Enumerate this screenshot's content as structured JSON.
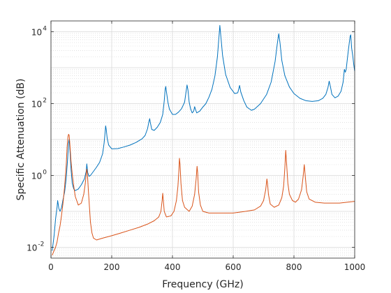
{
  "chart_data": {
    "type": "line",
    "title": "",
    "xlabel": "Frequency (GHz)",
    "ylabel": "Specific Attenuation (dB)",
    "xlim": [
      0,
      1000
    ],
    "ylim": [
      0.005,
      20000
    ],
    "yscale": "log",
    "grid": true,
    "minor_grid": true,
    "legend": "none",
    "xticks": [
      0,
      200,
      400,
      600,
      800,
      1000
    ],
    "xtick_labels": [
      "0",
      "200",
      "400",
      "600",
      "800",
      "1000"
    ],
    "yticks": [
      0.01,
      1,
      100,
      10000
    ],
    "ytick_labels": [
      "10",
      "10",
      "10",
      "10"
    ],
    "ytick_exponents": [
      "-2",
      "0",
      "2",
      "4"
    ],
    "series": [
      {
        "color": "#0072BD",
        "points": [
          [
            4,
            0.008
          ],
          [
            10,
            0.02
          ],
          [
            15,
            0.06
          ],
          [
            20,
            0.13
          ],
          [
            22,
            0.2
          ],
          [
            26,
            0.12
          ],
          [
            30,
            0.1
          ],
          [
            35,
            0.13
          ],
          [
            40,
            0.22
          ],
          [
            45,
            0.35
          ],
          [
            50,
            0.8
          ],
          [
            55,
            3
          ],
          [
            58,
            8
          ],
          [
            60,
            10
          ],
          [
            62,
            6
          ],
          [
            66,
            1.5
          ],
          [
            70,
            0.6
          ],
          [
            75,
            0.42
          ],
          [
            80,
            0.38
          ],
          [
            90,
            0.42
          ],
          [
            100,
            0.55
          ],
          [
            110,
            0.8
          ],
          [
            116,
            1.3
          ],
          [
            118,
            2.1
          ],
          [
            121,
            1.2
          ],
          [
            125,
            0.95
          ],
          [
            130,
            1.0
          ],
          [
            140,
            1.3
          ],
          [
            150,
            1.7
          ],
          [
            160,
            2.3
          ],
          [
            170,
            4
          ],
          [
            175,
            8
          ],
          [
            178,
            15
          ],
          [
            180,
            24
          ],
          [
            182,
            19
          ],
          [
            185,
            11
          ],
          [
            190,
            7
          ],
          [
            200,
            5.5
          ],
          [
            220,
            5.6
          ],
          [
            240,
            6.2
          ],
          [
            260,
            7
          ],
          [
            280,
            8.3
          ],
          [
            300,
            10.5
          ],
          [
            310,
            13
          ],
          [
            318,
            20
          ],
          [
            322,
            30
          ],
          [
            325,
            38
          ],
          [
            327,
            30
          ],
          [
            332,
            19
          ],
          [
            340,
            18
          ],
          [
            350,
            22
          ],
          [
            360,
            30
          ],
          [
            368,
            50
          ],
          [
            373,
            120
          ],
          [
            376,
            250
          ],
          [
            378,
            300
          ],
          [
            380,
            220
          ],
          [
            385,
            110
          ],
          [
            390,
            70
          ],
          [
            400,
            50
          ],
          [
            410,
            50
          ],
          [
            420,
            58
          ],
          [
            430,
            72
          ],
          [
            440,
            110
          ],
          [
            445,
            220
          ],
          [
            448,
            330
          ],
          [
            451,
            240
          ],
          [
            455,
            110
          ],
          [
            460,
            70
          ],
          [
            465,
            55
          ],
          [
            470,
            62
          ],
          [
            473,
            82
          ],
          [
            476,
            68
          ],
          [
            480,
            55
          ],
          [
            490,
            62
          ],
          [
            500,
            80
          ],
          [
            510,
            100
          ],
          [
            520,
            150
          ],
          [
            530,
            250
          ],
          [
            540,
            600
          ],
          [
            548,
            2000
          ],
          [
            553,
            7000
          ],
          [
            556,
            15000
          ],
          [
            559,
            8000
          ],
          [
            565,
            2200
          ],
          [
            575,
            650
          ],
          [
            590,
            280
          ],
          [
            605,
            190
          ],
          [
            615,
            200
          ],
          [
            618,
            250
          ],
          [
            621,
            320
          ],
          [
            625,
            210
          ],
          [
            635,
            120
          ],
          [
            645,
            80
          ],
          [
            660,
            65
          ],
          [
            670,
            70
          ],
          [
            690,
            100
          ],
          [
            710,
            180
          ],
          [
            725,
            400
          ],
          [
            738,
            1500
          ],
          [
            745,
            4500
          ],
          [
            750,
            8800
          ],
          [
            754,
            5000
          ],
          [
            760,
            1600
          ],
          [
            770,
            600
          ],
          [
            785,
            290
          ],
          [
            800,
            190
          ],
          [
            820,
            140
          ],
          [
            840,
            120
          ],
          [
            860,
            115
          ],
          [
            880,
            120
          ],
          [
            895,
            140
          ],
          [
            905,
            180
          ],
          [
            912,
            280
          ],
          [
            916,
            420
          ],
          [
            920,
            300
          ],
          [
            925,
            180
          ],
          [
            935,
            145
          ],
          [
            945,
            160
          ],
          [
            955,
            220
          ],
          [
            962,
            400
          ],
          [
            966,
            900
          ],
          [
            969,
            750
          ],
          [
            972,
            900
          ],
          [
            976,
            1800
          ],
          [
            980,
            3500
          ],
          [
            985,
            7500
          ],
          [
            987,
            8200
          ],
          [
            990,
            3500
          ],
          [
            994,
            2000
          ],
          [
            997,
            1200
          ],
          [
            1000,
            800
          ]
        ]
      },
      {
        "color": "#D95319",
        "points": [
          [
            4,
            0.006
          ],
          [
            10,
            0.008
          ],
          [
            15,
            0.01
          ],
          [
            20,
            0.014
          ],
          [
            25,
            0.025
          ],
          [
            30,
            0.04
          ],
          [
            35,
            0.08
          ],
          [
            40,
            0.18
          ],
          [
            45,
            0.5
          ],
          [
            50,
            1.8
          ],
          [
            53,
            6
          ],
          [
            56,
            12
          ],
          [
            58,
            14
          ],
          [
            60,
            13
          ],
          [
            63,
            6
          ],
          [
            66,
            2.5
          ],
          [
            70,
            1.1
          ],
          [
            75,
            0.5
          ],
          [
            80,
            0.26
          ],
          [
            90,
            0.15
          ],
          [
            100,
            0.17
          ],
          [
            108,
            0.3
          ],
          [
            113,
            0.6
          ],
          [
            116,
            1.1
          ],
          [
            118,
            1.5
          ],
          [
            120,
            1.1
          ],
          [
            123,
            0.4
          ],
          [
            127,
            0.12
          ],
          [
            130,
            0.05
          ],
          [
            135,
            0.025
          ],
          [
            140,
            0.018
          ],
          [
            150,
            0.016
          ],
          [
            170,
            0.018
          ],
          [
            200,
            0.021
          ],
          [
            230,
            0.025
          ],
          [
            260,
            0.03
          ],
          [
            290,
            0.036
          ],
          [
            320,
            0.045
          ],
          [
            340,
            0.055
          ],
          [
            355,
            0.07
          ],
          [
            362,
            0.1
          ],
          [
            366,
            0.2
          ],
          [
            368,
            0.32
          ],
          [
            370,
            0.2
          ],
          [
            373,
            0.1
          ],
          [
            380,
            0.07
          ],
          [
            395,
            0.075
          ],
          [
            405,
            0.1
          ],
          [
            413,
            0.2
          ],
          [
            418,
            0.5
          ],
          [
            421,
            1.3
          ],
          [
            423,
            3
          ],
          [
            425,
            2
          ],
          [
            428,
            0.6
          ],
          [
            433,
            0.2
          ],
          [
            440,
            0.13
          ],
          [
            455,
            0.1
          ],
          [
            465,
            0.14
          ],
          [
            473,
            0.3
          ],
          [
            478,
            0.8
          ],
          [
            481,
            1.8
          ],
          [
            483,
            1.2
          ],
          [
            486,
            0.35
          ],
          [
            492,
            0.15
          ],
          [
            500,
            0.1
          ],
          [
            520,
            0.09
          ],
          [
            560,
            0.09
          ],
          [
            600,
            0.09
          ],
          [
            640,
            0.1
          ],
          [
            670,
            0.11
          ],
          [
            690,
            0.14
          ],
          [
            700,
            0.2
          ],
          [
            707,
            0.4
          ],
          [
            711,
            0.8
          ],
          [
            713,
            0.6
          ],
          [
            716,
            0.3
          ],
          [
            722,
            0.16
          ],
          [
            735,
            0.13
          ],
          [
            750,
            0.15
          ],
          [
            760,
            0.24
          ],
          [
            766,
            0.5
          ],
          [
            770,
            1.6
          ],
          [
            773,
            5
          ],
          [
            776,
            2
          ],
          [
            780,
            0.6
          ],
          [
            785,
            0.3
          ],
          [
            795,
            0.2
          ],
          [
            805,
            0.18
          ],
          [
            815,
            0.22
          ],
          [
            825,
            0.4
          ],
          [
            830,
            0.9
          ],
          [
            834,
            2
          ],
          [
            838,
            0.8
          ],
          [
            842,
            0.35
          ],
          [
            850,
            0.22
          ],
          [
            870,
            0.18
          ],
          [
            900,
            0.17
          ],
          [
            950,
            0.17
          ],
          [
            1000,
            0.19
          ]
        ]
      }
    ]
  }
}
